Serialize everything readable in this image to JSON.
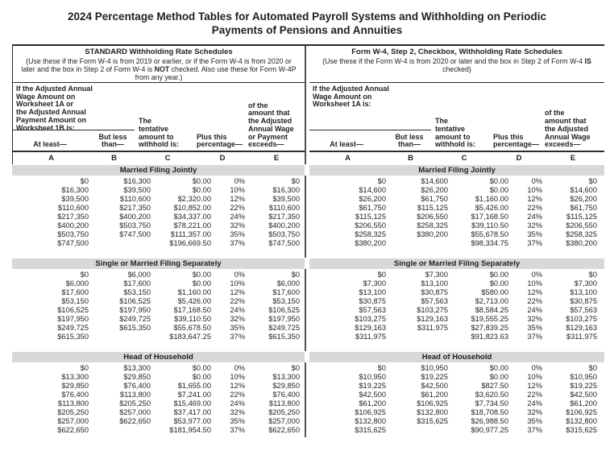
{
  "title": {
    "line1": "2024 Percentage Method Tables for Automated Payroll Systems and Withholding on Periodic",
    "line2": "Payments of Pensions and Annuities"
  },
  "colors": {
    "band_bg": "#d8d8d8",
    "rule": "#2b2b2b",
    "text": "#1f1f1f"
  },
  "schedules": [
    {
      "header_title": "STANDARD Withholding Rate Schedules",
      "note_before": "(Use these if the Form W-4 is from 2019 or earlier, or if the Form W-4 is from 2020 or later and the box in Step 2 of Form W-4 is ",
      "note_bold": "NOT",
      "note_after": " checked. Also use these for Form W-4P from any year.)",
      "intro": "If the Adjusted Annual\nWage Amount on\nWorksheet 1A or\nthe Adjusted Annual\nPayment Amount on\nWorksheet 1B is:",
      "col_at_least": "At least—",
      "col_but_less": "But less\nthan—",
      "col_tentative": "The\ntentative\namount to\nwithhold is:",
      "col_plus": "Plus this\npercentage—",
      "col_of": "of the\namount that\nthe Adjusted\nAnnual Wage\nor Payment\nexceeds—",
      "letters": [
        "A",
        "B",
        "C",
        "D",
        "E"
      ],
      "sections": [
        {
          "name": "Married Filing Jointly",
          "rows": [
            [
              "$0",
              "$16,300",
              "$0.00",
              "0%",
              "$0"
            ],
            [
              "$16,300",
              "$39,500",
              "$0.00",
              "10%",
              "$16,300"
            ],
            [
              "$39,500",
              "$110,600",
              "$2,320.00",
              "12%",
              "$39,500"
            ],
            [
              "$110,600",
              "$217,350",
              "$10,852.00",
              "22%",
              "$110,600"
            ],
            [
              "$217,350",
              "$400,200",
              "$34,337.00",
              "24%",
              "$217,350"
            ],
            [
              "$400,200",
              "$503,750",
              "$78,221.00",
              "32%",
              "$400,200"
            ],
            [
              "$503,750",
              "$747,500",
              "$111,357.00",
              "35%",
              "$503,750"
            ],
            [
              "$747,500",
              "",
              "$196,669.50",
              "37%",
              "$747,500"
            ]
          ]
        },
        {
          "name": "Single or Married Filing Separately",
          "rows": [
            [
              "$0",
              "$6,000",
              "$0.00",
              "0%",
              "$0"
            ],
            [
              "$6,000",
              "$17,600",
              "$0.00",
              "10%",
              "$6,000"
            ],
            [
              "$17,600",
              "$53,150",
              "$1,160.00",
              "12%",
              "$17,600"
            ],
            [
              "$53,150",
              "$106,525",
              "$5,426.00",
              "22%",
              "$53,150"
            ],
            [
              "$106,525",
              "$197,950",
              "$17,168.50",
              "24%",
              "$106,525"
            ],
            [
              "$197,950",
              "$249,725",
              "$39,110.50",
              "32%",
              "$197,950"
            ],
            [
              "$249,725",
              "$615,350",
              "$55,678.50",
              "35%",
              "$249,725"
            ],
            [
              "$615,350",
              "",
              "$183,647.25",
              "37%",
              "$615,350"
            ]
          ]
        },
        {
          "name": "Head of Household",
          "rows": [
            [
              "$0",
              "$13,300",
              "$0.00",
              "0%",
              "$0"
            ],
            [
              "$13,300",
              "$29,850",
              "$0.00",
              "10%",
              "$13,300"
            ],
            [
              "$29,850",
              "$76,400",
              "$1,655.00",
              "12%",
              "$29,850"
            ],
            [
              "$76,400",
              "$113,800",
              "$7,241.00",
              "22%",
              "$76,400"
            ],
            [
              "$113,800",
              "$205,250",
              "$15,469.00",
              "24%",
              "$113,800"
            ],
            [
              "$205,250",
              "$257,000",
              "$37,417.00",
              "32%",
              "$205,250"
            ],
            [
              "$257,000",
              "$622,650",
              "$53,977.00",
              "35%",
              "$257,000"
            ],
            [
              "$622,650",
              "",
              "$181,954.50",
              "37%",
              "$622,650"
            ]
          ]
        }
      ]
    },
    {
      "header_title": "Form W-4, Step 2, Checkbox, Withholding Rate Schedules",
      "note_before": "(Use these if the Form W-4 is from 2020 or later and the box in Step 2 of ",
      "note_bold_pre": "Form W-4 ",
      "note_bold": "IS",
      "note_after": " checked)",
      "intro": "If the Adjusted Annual\nWage Amount on\nWorksheet 1A is:",
      "col_at_least": "At least—",
      "col_but_less": "But less\nthan—",
      "col_tentative": "The\ntentative\namount to\nwithhold is:",
      "col_plus": "Plus this\npercentage—",
      "col_of": "of the\namount that\nthe Adjusted\nAnnual Wage\nexceeds—",
      "letters": [
        "A",
        "B",
        "C",
        "D",
        "E"
      ],
      "sections": [
        {
          "name": "Married Filing Jointly",
          "rows": [
            [
              "$0",
              "$14,600",
              "$0.00",
              "0%",
              "$0"
            ],
            [
              "$14,600",
              "$26,200",
              "$0.00",
              "10%",
              "$14,600"
            ],
            [
              "$26,200",
              "$61,750",
              "$1,160.00",
              "12%",
              "$26,200"
            ],
            [
              "$61,750",
              "$115,125",
              "$5,426.00",
              "22%",
              "$61,750"
            ],
            [
              "$115,125",
              "$206,550",
              "$17,168.50",
              "24%",
              "$115,125"
            ],
            [
              "$206,550",
              "$258,325",
              "$39,110.50",
              "32%",
              "$206,550"
            ],
            [
              "$258,325",
              "$380,200",
              "$55,678.50",
              "35%",
              "$258,325"
            ],
            [
              "$380,200",
              "",
              "$98,334.75",
              "37%",
              "$380,200"
            ]
          ]
        },
        {
          "name": "Single or Married Filing Separately",
          "rows": [
            [
              "$0",
              "$7,300",
              "$0.00",
              "0%",
              "$0"
            ],
            [
              "$7,300",
              "$13,100",
              "$0.00",
              "10%",
              "$7,300"
            ],
            [
              "$13,100",
              "$30,875",
              "$580.00",
              "12%",
              "$13,100"
            ],
            [
              "$30,875",
              "$57,563",
              "$2,713.00",
              "22%",
              "$30,875"
            ],
            [
              "$57,563",
              "$103,275",
              "$8,584.25",
              "24%",
              "$57,563"
            ],
            [
              "$103,275",
              "$129,163",
              "$19,555.25",
              "32%",
              "$103,275"
            ],
            [
              "$129,163",
              "$311,975",
              "$27,839.25",
              "35%",
              "$129,163"
            ],
            [
              "$311,975",
              "",
              "$91,823.63",
              "37%",
              "$311,975"
            ]
          ]
        },
        {
          "name": "Head of Household",
          "rows": [
            [
              "$0",
              "$10,950",
              "$0.00",
              "0%",
              "$0"
            ],
            [
              "$10,950",
              "$19,225",
              "$0.00",
              "10%",
              "$10,950"
            ],
            [
              "$19,225",
              "$42,500",
              "$827.50",
              "12%",
              "$19,225"
            ],
            [
              "$42,500",
              "$61,200",
              "$3,620.50",
              "22%",
              "$42,500"
            ],
            [
              "$61,200",
              "$106,925",
              "$7,734.50",
              "24%",
              "$61,200"
            ],
            [
              "$106,925",
              "$132,800",
              "$18,708.50",
              "32%",
              "$106,925"
            ],
            [
              "$132,800",
              "$315,625",
              "$26,988.50",
              "35%",
              "$132,800"
            ],
            [
              "$315,625",
              "",
              "$90,977.25",
              "37%",
              "$315,625"
            ]
          ]
        }
      ]
    }
  ]
}
